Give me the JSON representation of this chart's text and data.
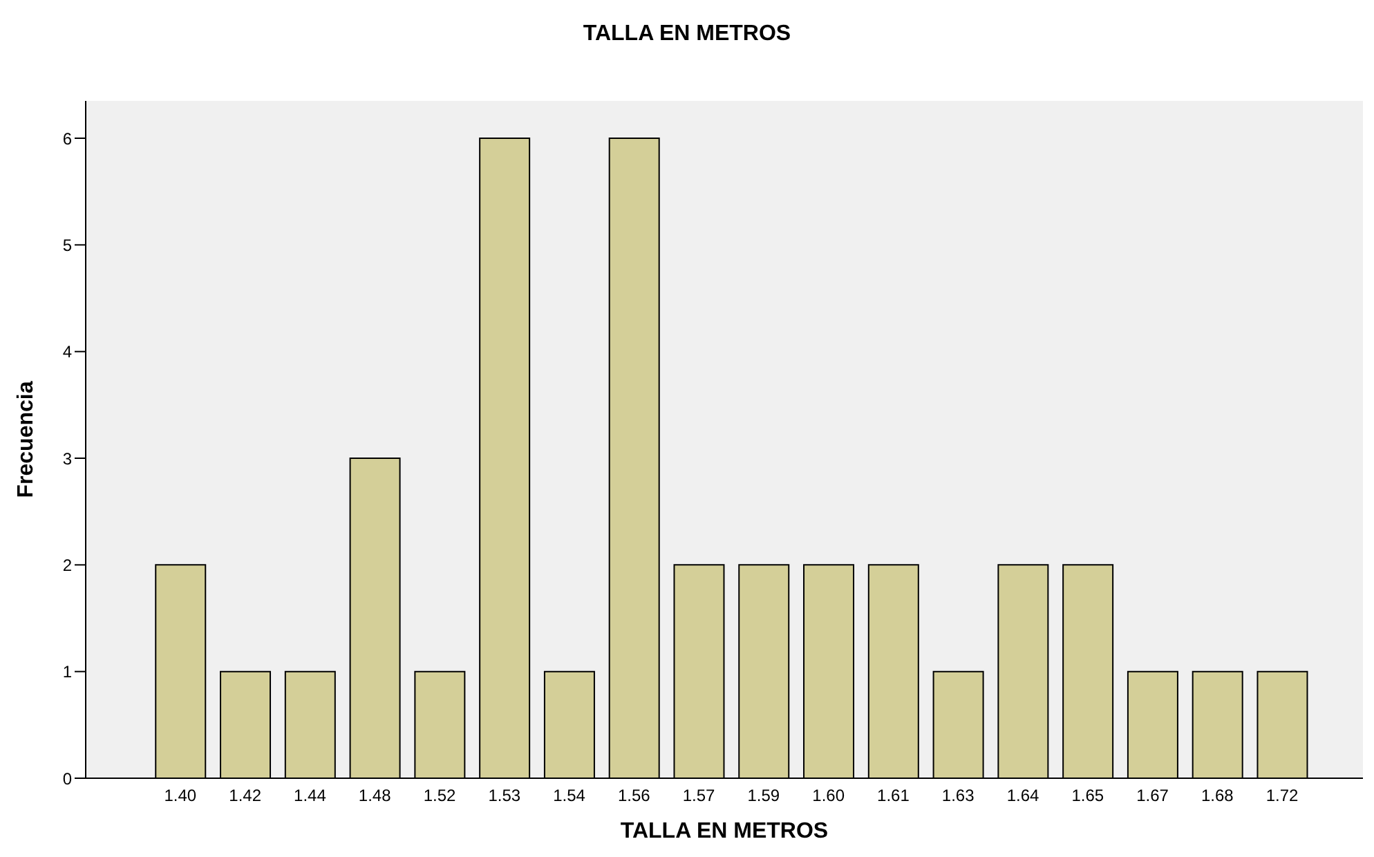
{
  "chart_data": {
    "type": "bar",
    "title": "TALLA EN METROS",
    "xlabel": "TALLA EN METROS",
    "ylabel": "Frecuencia",
    "categories": [
      "1.40",
      "1.42",
      "1.44",
      "1.48",
      "1.52",
      "1.53",
      "1.54",
      "1.56",
      "1.57",
      "1.59",
      "1.60",
      "1.61",
      "1.63",
      "1.64",
      "1.65",
      "1.67",
      "1.68",
      "1.72"
    ],
    "values": [
      2,
      1,
      1,
      3,
      1,
      6,
      1,
      6,
      2,
      2,
      2,
      2,
      1,
      2,
      2,
      1,
      1,
      1
    ],
    "color": "#d4cf98",
    "ylim": [
      0,
      6.35
    ],
    "yticks": [
      0,
      1,
      2,
      3,
      4,
      5,
      6
    ],
    "grid": false
  }
}
